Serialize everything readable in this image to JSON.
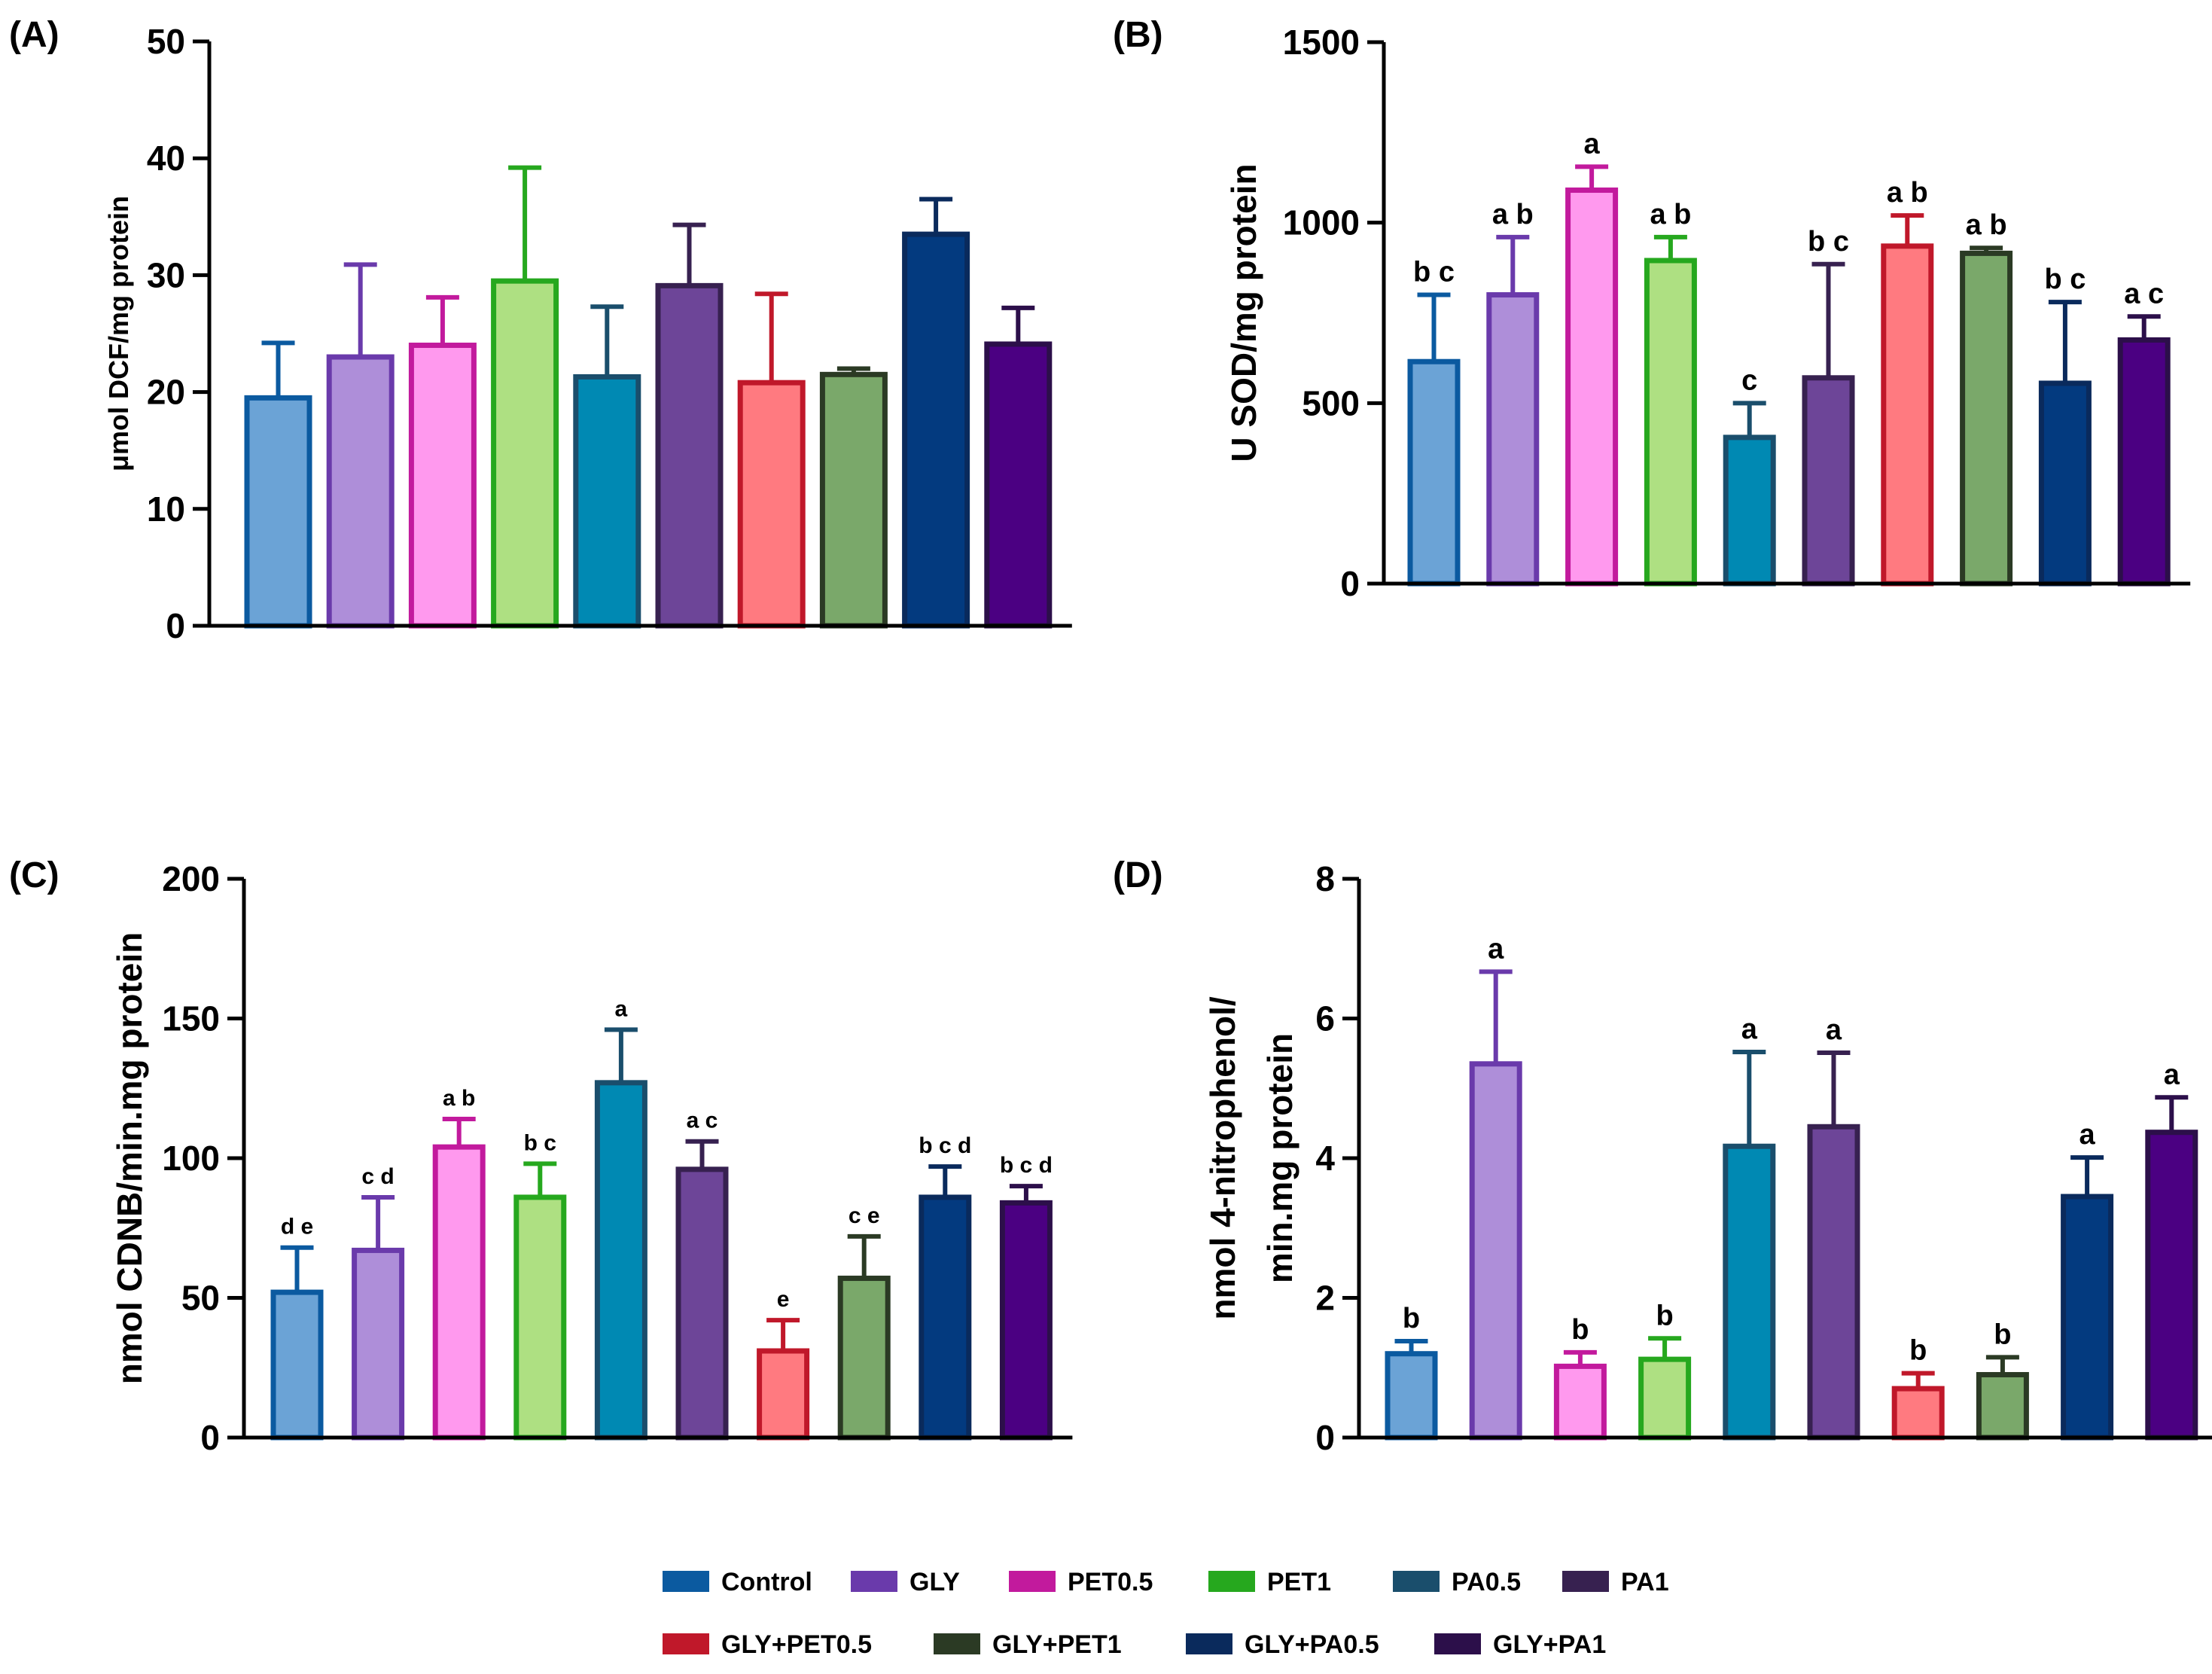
{
  "groups": [
    "Control",
    "GLY",
    "PET0.5",
    "PET1",
    "PA0.5",
    "PA1",
    "GLY+PET0.5",
    "GLY+PET1",
    "GLY+PA0.5",
    "GLY+PA1"
  ],
  "colors": {
    "fill": [
      "#6ba3d6",
      "#ae8ed9",
      "#ff99ee",
      "#aee082",
      "#0089b3",
      "#6d4598",
      "#ff7a80",
      "#7aa86a",
      "#033a7f",
      "#4b0082"
    ],
    "stroke": [
      "#0b5aa0",
      "#6a3aab",
      "#c21a9d",
      "#26a81e",
      "#1a4e6c",
      "#372150",
      "#c0182a",
      "#2b3a24",
      "#0a2a5c",
      "#2c0f4a"
    ]
  },
  "chart_data": [
    {
      "type": "bar",
      "panel": "(A)",
      "title": "",
      "xlabel": "",
      "ylabel": "μmol DCF/mg protein",
      "ylim": [
        0,
        50
      ],
      "yticks": [
        0,
        10,
        20,
        30,
        40,
        50
      ],
      "categories": [
        "Control",
        "GLY",
        "PET0.5",
        "PET1",
        "PA0.5",
        "PA1",
        "GLY+PET0.5",
        "GLY+PET1",
        "GLY+PA0.5",
        "GLY+PA1"
      ],
      "values": [
        19.5,
        23,
        24,
        29.5,
        21.3,
        29.1,
        20.8,
        21.5,
        33.5,
        24.1
      ],
      "errors": [
        4.7,
        7.9,
        4.1,
        9.7,
        6,
        5.2,
        7.6,
        0.5,
        3,
        3.1
      ],
      "letters": [
        "",
        "",
        "",
        "",
        "",
        "",
        "",
        "",
        "",
        ""
      ]
    },
    {
      "type": "bar",
      "panel": "(B)",
      "title": "",
      "xlabel": "",
      "ylabel": "U SOD/mg protein",
      "ylim": [
        0,
        1500
      ],
      "yticks": [
        0,
        500,
        1000,
        1500
      ],
      "categories": [
        "Control",
        "GLY",
        "PET0.5",
        "PET1",
        "PA0.5",
        "PA1",
        "GLY+PET0.5",
        "GLY+PET1",
        "GLY+PA0.5",
        "GLY+PA1"
      ],
      "values": [
        615,
        800,
        1090,
        895,
        405,
        570,
        935,
        915,
        555,
        675
      ],
      "errors": [
        185,
        160,
        65,
        65,
        95,
        315,
        85,
        15,
        225,
        65
      ],
      "letters": [
        "b c",
        "a b",
        "a",
        "a b",
        "c",
        "b c",
        "a b",
        "a b",
        "b c",
        "a c"
      ]
    },
    {
      "type": "bar",
      "panel": "(C)",
      "title": "",
      "xlabel": "",
      "ylabel": "nmol CDNB/min.mg protein",
      "ylim": [
        0,
        200
      ],
      "yticks": [
        0,
        50,
        100,
        150,
        200
      ],
      "categories": [
        "Control",
        "GLY",
        "PET0.5",
        "PET1",
        "PA0.5",
        "PA1",
        "GLY+PET0.5",
        "GLY+PET1",
        "GLY+PA0.5",
        "GLY+PA1"
      ],
      "values": [
        52,
        67,
        104,
        86,
        127,
        96,
        31,
        57,
        86,
        84
      ],
      "errors": [
        16,
        19,
        10,
        12,
        19,
        10,
        11,
        15,
        11,
        6
      ],
      "letters": [
        "d e",
        "c d",
        "a b",
        "b c",
        "a",
        "a c",
        "e",
        "c e",
        "b c d",
        "b c d"
      ]
    },
    {
      "type": "bar",
      "panel": "(D)",
      "title": "",
      "xlabel": "",
      "ylabel_lines": [
        "nmol 4-nitrophenol/",
        "min.mg protein"
      ],
      "ylim": [
        0,
        8
      ],
      "yticks": [
        0,
        2,
        4,
        6,
        8
      ],
      "categories": [
        "Control",
        "GLY",
        "PET0.5",
        "PET1",
        "PA0.5",
        "PA1",
        "GLY+PET0.5",
        "GLY+PET1",
        "GLY+PA0.5",
        "GLY+PA1"
      ],
      "values": [
        1.2,
        5.35,
        1.02,
        1.12,
        4.17,
        4.45,
        0.7,
        0.9,
        3.45,
        4.37
      ],
      "errors": [
        0.18,
        1.32,
        0.2,
        0.3,
        1.35,
        1.06,
        0.22,
        0.25,
        0.56,
        0.5
      ],
      "letters": [
        "b",
        "a",
        "b",
        "b",
        "a",
        "a",
        "b",
        "b",
        "a",
        "a"
      ]
    }
  ],
  "legend": {
    "placement": "bottom-center",
    "rows": [
      [
        "Control",
        "GLY",
        "PET0.5",
        "PET1",
        "PA0.5",
        "PA1"
      ],
      [
        "GLY+PET0.5",
        "GLY+PET1",
        "GLY+PA0.5",
        "GLY+PA1"
      ]
    ]
  }
}
